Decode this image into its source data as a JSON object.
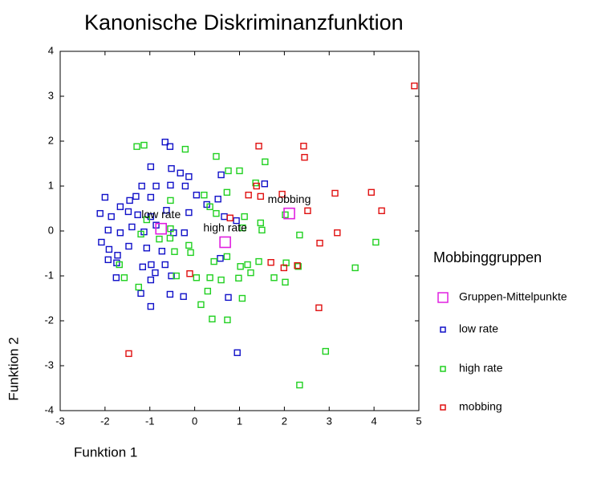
{
  "chart_data": {
    "type": "scatter",
    "title": "Kanonische Diskriminanzfunktion",
    "xlabel": "Funktion 1",
    "ylabel": "Funktion 2",
    "legend_title": "Mobbinggruppen",
    "xlim": [
      -3,
      5
    ],
    "ylim": [
      -4,
      4
    ],
    "xticks": [
      -3,
      -2,
      -1,
      0,
      1,
      2,
      3,
      4,
      5
    ],
    "yticks": [
      -4,
      -3,
      -2,
      -1,
      0,
      1,
      2,
      3,
      4
    ],
    "legend": "right",
    "series": [
      {
        "name": "Gruppen-Mittelpunkte",
        "color": "#e020e0",
        "marker_size": 13,
        "x": [
          -0.75,
          0.68,
          2.11
        ],
        "values": [
          0.05,
          -0.25,
          0.39
        ]
      },
      {
        "name": "low rate",
        "color": "#1010c8",
        "marker_size": 7,
        "x": [
          -0.66,
          -0.55,
          -0.98,
          -0.52,
          -0.32,
          -0.13,
          0.59,
          1.56,
          -1.18,
          -0.86,
          -0.54,
          -0.21,
          -0.98,
          -1.31,
          -1.45,
          -2.0,
          -1.66,
          -2.11,
          -1.86,
          -1.48,
          -1.27,
          -0.98,
          -0.63,
          -0.13,
          0.04,
          0.27,
          0.52,
          0.66,
          0.93,
          -0.23,
          -0.47,
          -0.86,
          -1.13,
          -1.4,
          -1.66,
          -1.93,
          -2.08,
          -1.91,
          -1.72,
          -1.47,
          -1.07,
          -0.73,
          -1.93,
          -1.74,
          -1.16,
          -0.97,
          -0.66,
          -0.88,
          -0.98,
          -0.52,
          -1.75,
          -1.2,
          -0.55,
          -0.25,
          -0.98,
          0.75,
          0.57,
          0.95
        ],
        "values": [
          1.98,
          1.88,
          1.43,
          1.39,
          1.29,
          1.21,
          1.25,
          1.05,
          1.0,
          1.0,
          1.02,
          1.0,
          0.75,
          0.77,
          0.68,
          0.75,
          0.54,
          0.39,
          0.32,
          0.43,
          0.36,
          0.32,
          0.46,
          0.41,
          0.8,
          0.59,
          0.71,
          0.32,
          0.23,
          -0.04,
          -0.04,
          0.13,
          -0.02,
          0.09,
          -0.04,
          0.02,
          -0.25,
          -0.41,
          -0.54,
          -0.34,
          -0.38,
          -0.45,
          -0.64,
          -0.71,
          -0.8,
          -0.75,
          -0.75,
          -0.93,
          -1.09,
          -1.0,
          -1.04,
          -1.39,
          -1.41,
          -1.46,
          -1.68,
          -1.48,
          -0.61,
          -2.71
        ]
      },
      {
        "name": "high rate",
        "color": "#20d020",
        "marker_size": 7,
        "x": [
          -1.29,
          -1.13,
          -0.21,
          0.48,
          0.75,
          1.0,
          1.57,
          1.36,
          0.72,
          0.21,
          -0.54,
          0.34,
          0.48,
          1.11,
          1.47,
          1.5,
          1.07,
          2.02,
          2.34,
          4.04,
          -0.54,
          -0.55,
          -0.79,
          -0.45,
          -0.13,
          -0.09,
          0.43,
          0.72,
          1.18,
          1.43,
          1.02,
          2.04,
          2.31,
          3.58,
          1.77,
          2.02,
          1.25,
          0.98,
          0.59,
          0.34,
          0.04,
          -0.41,
          0.29,
          0.14,
          1.06,
          0.39,
          0.73,
          2.92,
          2.34,
          -1.57,
          -1.25,
          -1.68,
          -1.2,
          -1.07
        ],
        "values": [
          1.88,
          1.91,
          1.82,
          1.66,
          1.34,
          1.34,
          1.54,
          1.07,
          0.86,
          0.8,
          0.68,
          0.54,
          0.39,
          0.32,
          0.18,
          0.02,
          0.07,
          0.36,
          -0.09,
          -0.25,
          0.05,
          -0.16,
          -0.18,
          -0.46,
          -0.32,
          -0.48,
          -0.68,
          -0.57,
          -0.75,
          -0.68,
          -0.79,
          -0.71,
          -0.79,
          -0.82,
          -1.04,
          -1.14,
          -0.93,
          -1.05,
          -1.09,
          -1.04,
          -1.04,
          -1.0,
          -1.34,
          -1.64,
          -1.5,
          -1.96,
          -1.98,
          -2.68,
          -3.43,
          -1.04,
          -1.25,
          -0.75,
          -0.07,
          0.25
        ]
      },
      {
        "name": "mobbing",
        "color": "#e01010",
        "marker_size": 7,
        "x": [
          4.9,
          2.43,
          1.43,
          2.45,
          1.38,
          1.2,
          1.47,
          1.95,
          3.13,
          3.94,
          4.17,
          2.52,
          0.79,
          3.18,
          2.79,
          1.7,
          1.99,
          2.29,
          -0.11,
          2.77,
          -1.47
        ],
        "values": [
          3.23,
          1.89,
          1.89,
          1.64,
          1.0,
          0.8,
          0.77,
          0.82,
          0.84,
          0.86,
          0.45,
          0.45,
          0.29,
          -0.04,
          -0.27,
          -0.7,
          -0.82,
          -0.77,
          -0.95,
          -1.71,
          -2.73
        ]
      }
    ]
  }
}
